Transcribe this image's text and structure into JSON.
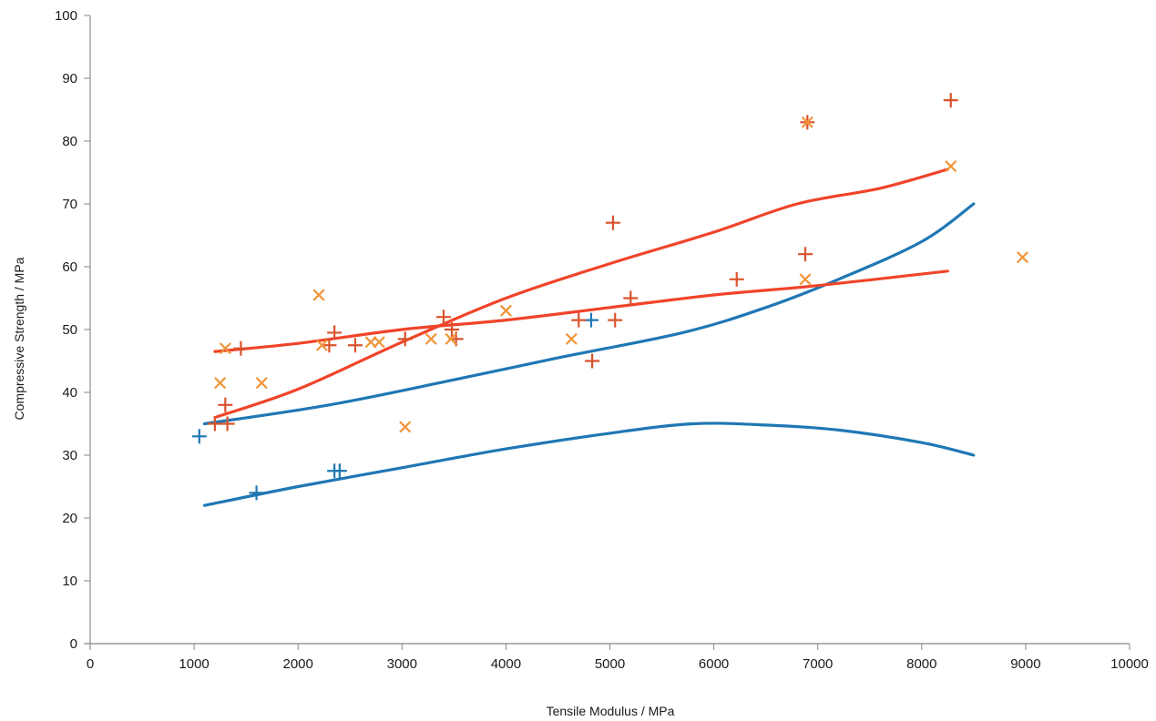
{
  "chart_data": {
    "type": "scatter",
    "title": "",
    "xlabel": "Tensile Modulus / MPa",
    "ylabel": "Compressive Strength / MPa",
    "xlim": [
      0,
      10000
    ],
    "ylim": [
      0,
      100
    ],
    "x_ticks": [
      "0",
      "1000",
      "2000",
      "3000",
      "4000",
      "5000",
      "6000",
      "7000",
      "8000",
      "9000",
      "10000"
    ],
    "y_ticks": [
      "0",
      "10",
      "20",
      "30",
      "40",
      "50",
      "60",
      "70",
      "80",
      "90",
      "100"
    ],
    "grid": false,
    "legend": "none",
    "colors": {
      "blue": "#1f77b4",
      "orange": "#f0953a",
      "red_marker": "#d9532c",
      "red_line": "#f0442a"
    },
    "point_series": [
      {
        "marker": "plus",
        "color": "#1f77b4",
        "points": [
          [
            1050,
            33
          ],
          [
            1600,
            24
          ],
          [
            2350,
            27.5
          ],
          [
            2400,
            27.5
          ],
          [
            4820,
            51.5
          ]
        ]
      },
      {
        "marker": "plus",
        "color": "#d9532c",
        "points": [
          [
            1200,
            35
          ],
          [
            1300,
            38
          ],
          [
            1320,
            35
          ],
          [
            1450,
            47
          ],
          [
            2300,
            47.5
          ],
          [
            2350,
            49.5
          ],
          [
            2550,
            47.5
          ],
          [
            3030,
            48.5
          ],
          [
            3400,
            52
          ],
          [
            3480,
            50
          ],
          [
            3520,
            48.5
          ],
          [
            4700,
            51.5
          ],
          [
            4830,
            45
          ],
          [
            5030,
            67
          ],
          [
            5050,
            51.5
          ],
          [
            5200,
            55
          ],
          [
            6220,
            58
          ],
          [
            6880,
            62
          ],
          [
            6900,
            83
          ],
          [
            8280,
            86.5
          ]
        ]
      },
      {
        "marker": "x",
        "color": "#f0953a",
        "points": [
          [
            1250,
            41.5
          ],
          [
            1300,
            47
          ],
          [
            1650,
            41.5
          ],
          [
            2200,
            55.5
          ],
          [
            2230,
            47.5
          ],
          [
            2700,
            48
          ],
          [
            2780,
            48
          ],
          [
            3030,
            34.5
          ],
          [
            3280,
            48.5
          ],
          [
            3470,
            48.5
          ],
          [
            4000,
            53
          ],
          [
            4630,
            48.5
          ],
          [
            6880,
            58
          ],
          [
            6900,
            83
          ],
          [
            8280,
            76
          ],
          [
            8970,
            61.5
          ]
        ]
      }
    ],
    "curves": [
      {
        "color": "#1f77b4",
        "points": [
          [
            1100,
            22
          ],
          [
            2000,
            25
          ],
          [
            3000,
            28
          ],
          [
            4000,
            31
          ],
          [
            5000,
            33.5
          ],
          [
            5800,
            35
          ],
          [
            6500,
            34.8
          ],
          [
            7200,
            34
          ],
          [
            8000,
            32
          ],
          [
            8500,
            30
          ]
        ]
      },
      {
        "color": "#1f77b4",
        "points": [
          [
            1100,
            35
          ],
          [
            2300,
            38
          ],
          [
            3500,
            42
          ],
          [
            4500,
            45.5
          ],
          [
            5700,
            49.5
          ],
          [
            6500,
            53.5
          ],
          [
            7200,
            58
          ],
          [
            8000,
            64
          ],
          [
            8500,
            70
          ]
        ]
      },
      {
        "color": "#f0442a",
        "points": [
          [
            1200,
            46.5
          ],
          [
            2000,
            47.8
          ],
          [
            3000,
            50
          ],
          [
            4000,
            51.5
          ],
          [
            5000,
            53.5
          ],
          [
            6000,
            55.5
          ],
          [
            7000,
            57
          ],
          [
            8250,
            59.3
          ]
        ]
      },
      {
        "color": "#f0442a",
        "points": [
          [
            1200,
            36
          ],
          [
            2000,
            40.5
          ],
          [
            3000,
            48
          ],
          [
            4000,
            55
          ],
          [
            5000,
            60.5
          ],
          [
            6000,
            65.5
          ],
          [
            6800,
            70
          ],
          [
            7600,
            72.5
          ],
          [
            8250,
            75.5
          ]
        ]
      }
    ]
  }
}
